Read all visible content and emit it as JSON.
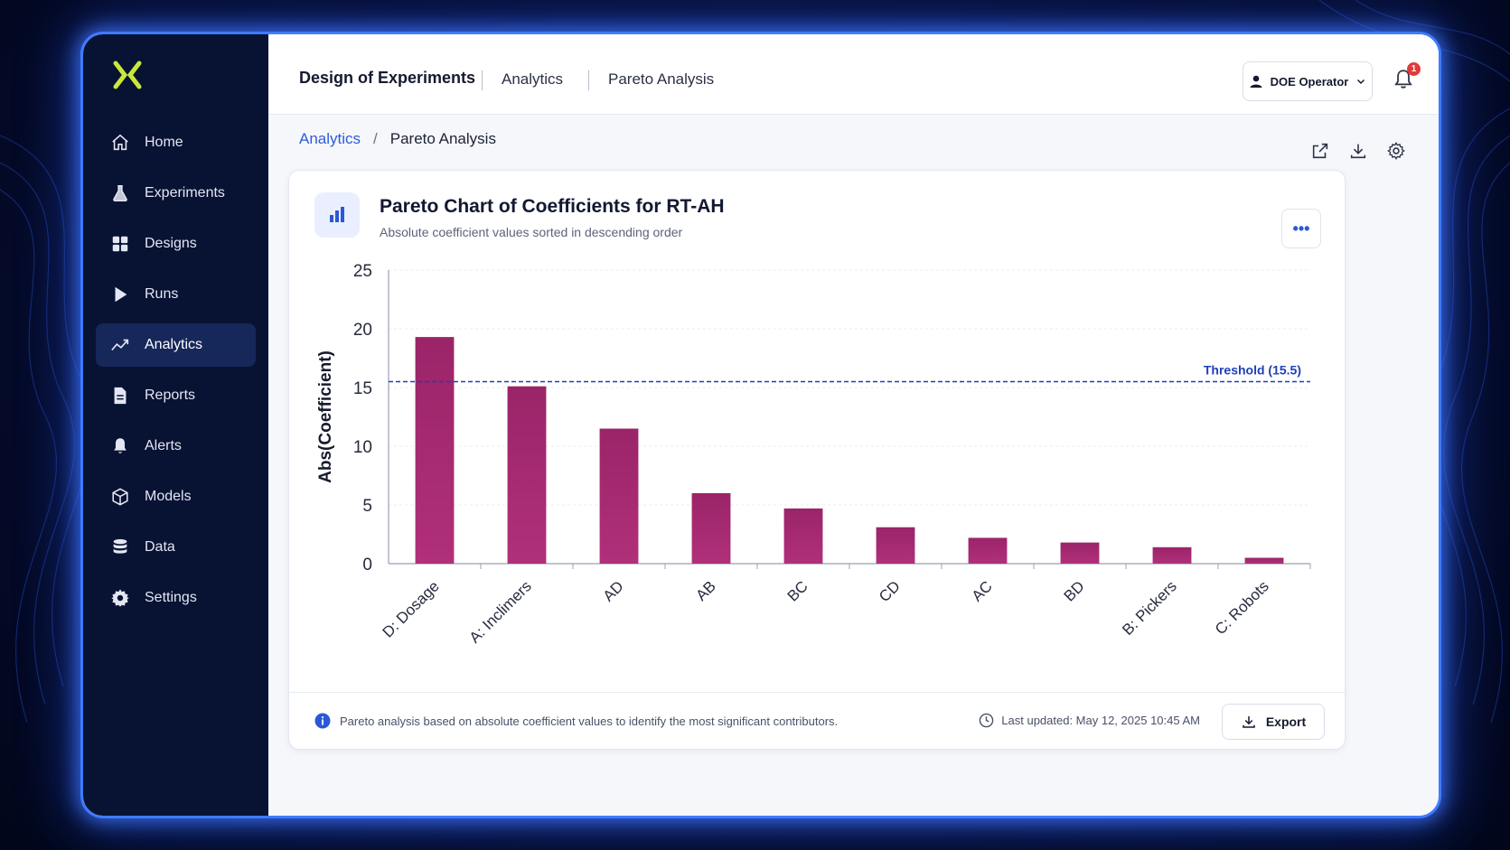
{
  "brand": {
    "logo": "x-logo-icon",
    "accent": "#c8e83a"
  },
  "sidebar": {
    "items": [
      {
        "label": "Home",
        "icon": "home-icon"
      },
      {
        "label": "Experiments",
        "icon": "flask-icon"
      },
      {
        "label": "Designs",
        "icon": "grid-icon"
      },
      {
        "label": "Runs",
        "icon": "play-icon"
      },
      {
        "label": "Analytics",
        "icon": "trend-icon",
        "active": true
      },
      {
        "label": "Reports",
        "icon": "document-icon"
      },
      {
        "label": "Alerts",
        "icon": "bell-icon"
      },
      {
        "label": "Models",
        "icon": "cube-icon"
      },
      {
        "label": "Data",
        "icon": "database-icon"
      },
      {
        "label": "Settings",
        "icon": "gear-icon"
      }
    ]
  },
  "topbar": {
    "title": "Design of Experiments",
    "crumbs": [
      "Analytics",
      "Pareto Analysis"
    ],
    "user": "DOE Operator",
    "notifications": "1"
  },
  "breadcrumb": {
    "link": "Analytics",
    "separator": "/",
    "current": "Pareto Analysis"
  },
  "card": {
    "title": "Pareto Chart of Coefficients for RT-AH",
    "subtitle": "Absolute coefficient values sorted in descending order",
    "footer_note": "Pareto analysis based on absolute coefficient values to identify the most significant contributors.",
    "last_updated": "Last updated: May 12, 2025 10:45 AM",
    "export_label": "Export"
  },
  "chart_data": {
    "type": "bar",
    "title": "Pareto Chart of Coefficients for RT-AH",
    "subtitle": "Absolute coefficient values sorted in descending order",
    "xlabel": "",
    "ylabel": "Abs(Coefficient)",
    "categories": [
      "D: Dosage",
      "A: Inclimers",
      "AD",
      "AB",
      "BC",
      "CD",
      "AC",
      "BD",
      "B: Pickers",
      "C: Robots"
    ],
    "values": [
      19.3,
      15.1,
      11.5,
      6.0,
      4.7,
      3.1,
      2.2,
      1.8,
      1.4,
      0.5
    ],
    "ylim": [
      0,
      25
    ],
    "yticks": [
      0,
      5,
      10,
      15,
      20,
      25
    ],
    "threshold": {
      "value": 15.5,
      "label": "Threshold (15.5)",
      "color": "#1f3fb8"
    },
    "bar_color": "#9b2468",
    "grid": true
  }
}
